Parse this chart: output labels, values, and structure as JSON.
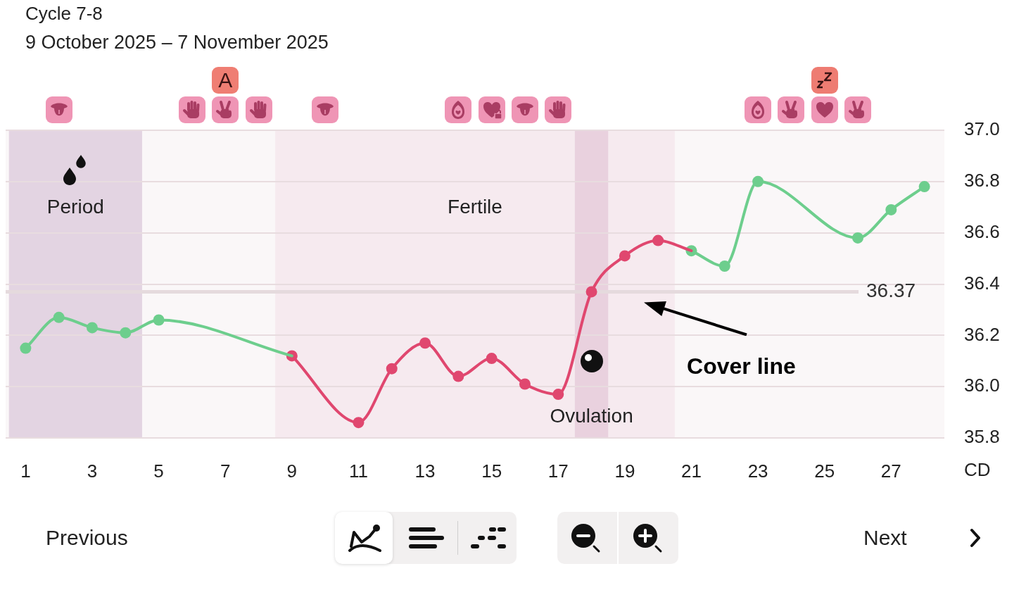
{
  "chart_data": {
    "type": "line",
    "title": "Cycle 7-8",
    "subtitle": "9 October 2025 – 7 November 2025",
    "xlabel": "CD",
    "series": [
      {
        "color": "#6dce8d",
        "x": [
          1,
          2,
          3,
          4,
          5,
          9
        ],
        "values": [
          36.15,
          36.27,
          36.23,
          36.21,
          36.26,
          36.12
        ]
      },
      {
        "color": "#e0476f",
        "x": [
          9,
          11,
          12,
          13,
          14,
          15,
          16,
          17,
          18,
          19,
          20,
          21
        ],
        "values": [
          36.12,
          35.86,
          36.07,
          36.17,
          36.04,
          36.11,
          36.01,
          35.97,
          36.37,
          36.51,
          36.57,
          36.53
        ]
      },
      {
        "color": "#6dce8d",
        "x": [
          21,
          22,
          23,
          26,
          27,
          28
        ],
        "values": [
          36.53,
          36.47,
          36.8,
          36.58,
          36.69,
          36.78
        ]
      }
    ],
    "xlim": [
      0.4,
      28.6
    ],
    "xticks": [
      1,
      3,
      5,
      7,
      9,
      11,
      13,
      15,
      17,
      19,
      21,
      23,
      25,
      27
    ],
    "ylim": [
      35.8,
      37.0
    ],
    "yticks": [
      35.8,
      {
        "value": 36,
        "label": "36.0"
      },
      36.2,
      36.4,
      36.6,
      36.8,
      {
        "value": 37,
        "label": "37.0"
      }
    ],
    "grid": "y",
    "marker": "circle",
    "line_style": "solid",
    "ref_lines": [
      {
        "axis": "y",
        "value": 36.37,
        "label": "36.37",
        "color": "#e5dadd"
      }
    ],
    "bands": [
      {
        "axis": "x",
        "from": 0.5,
        "to": 4.5,
        "label": "Period",
        "color": "#e3d4e2"
      },
      {
        "axis": "x",
        "from": 8.5,
        "to": 20.5,
        "label": "Fertile",
        "color": "#f6eaef"
      },
      {
        "axis": "x",
        "from": 17.5,
        "to": 18.5,
        "label": "Ovulation",
        "color": "#e9d1de"
      }
    ],
    "annotations": [
      "Cover line",
      "A",
      "Previous",
      "Next"
    ]
  }
}
